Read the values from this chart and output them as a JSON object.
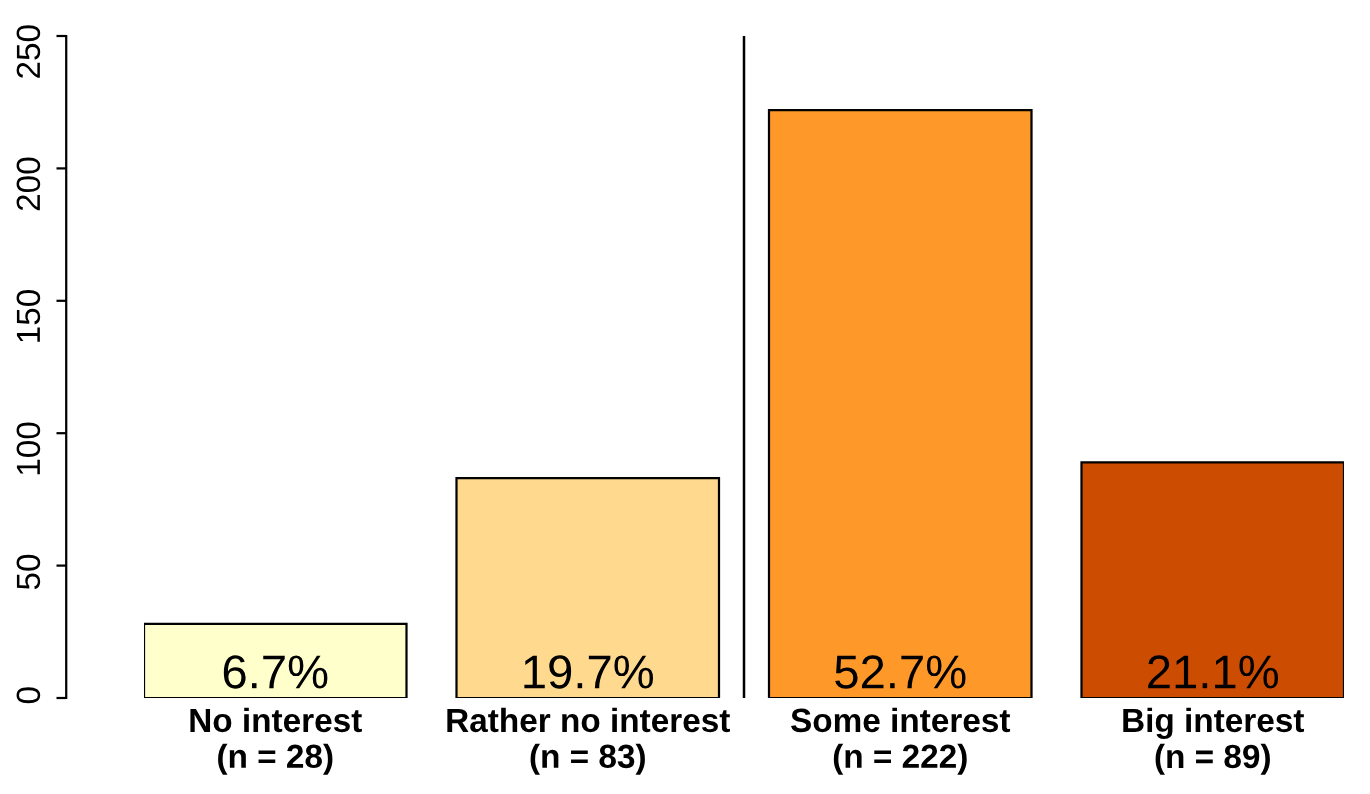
{
  "chart_data": {
    "type": "bar",
    "categories": [
      "No interest\n(n = 28)",
      "Rather no interest\n(n = 83)",
      "Some interest\n(n = 222)",
      "Big interest\n(n = 89)"
    ],
    "values": [
      28,
      83,
      222,
      89
    ],
    "colors": [
      "#ffffcc",
      "#fed98e",
      "#fe9929",
      "#cc4c02"
    ],
    "annotations": [
      "6.7%",
      "19.7%",
      "52.7%",
      "21.1%"
    ],
    "ylim": [
      0,
      250
    ],
    "yticks": [
      0,
      50,
      100,
      150,
      200,
      250
    ],
    "grid": false,
    "legend": false
  }
}
